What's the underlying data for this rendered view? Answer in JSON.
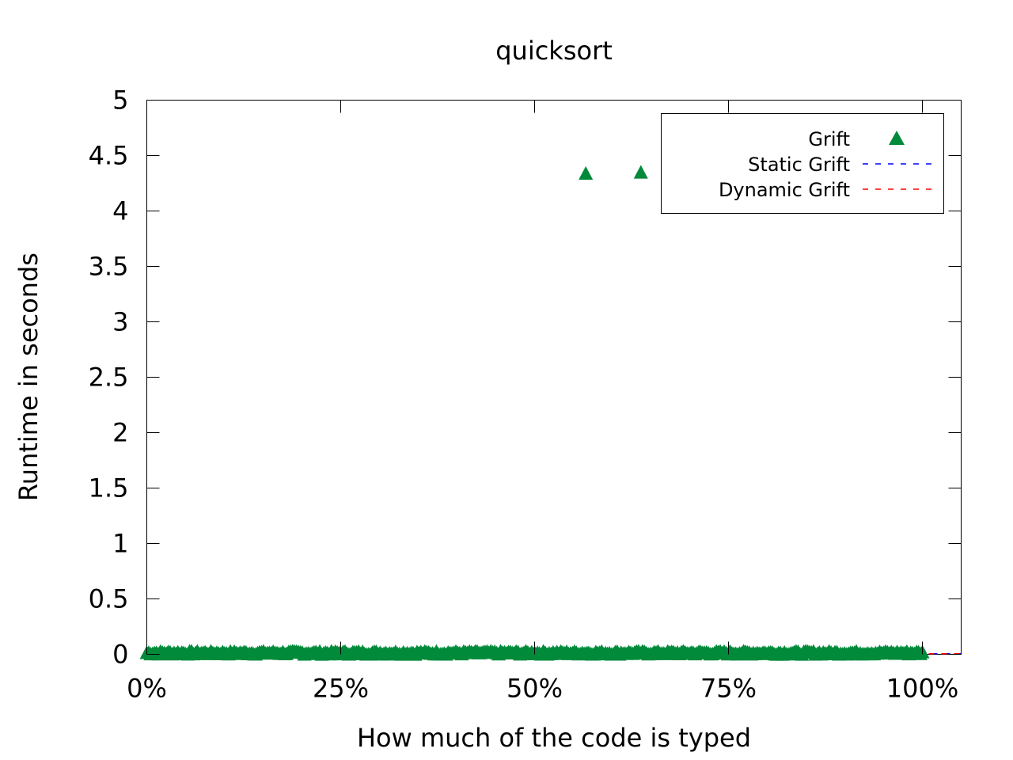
{
  "chart_data": {
    "type": "scatter",
    "title": "quicksort",
    "xlabel": "How much of the code is typed",
    "ylabel": "Runtime in seconds",
    "xlim": [
      0,
      1.05
    ],
    "ylim": [
      0,
      5
    ],
    "xticks": [
      0,
      0.25,
      0.5,
      0.75,
      1.0
    ],
    "xtick_labels": [
      "0%",
      "25%",
      "50%",
      "75%",
      "100%"
    ],
    "yticks": [
      0,
      0.5,
      1,
      1.5,
      2,
      2.5,
      3,
      3.5,
      4,
      4.5,
      5
    ],
    "ytick_labels": [
      "0",
      "0.5",
      "1",
      "1.5",
      "2",
      "2.5",
      "3",
      "3.5",
      "4",
      "4.5",
      "5"
    ],
    "grid": false,
    "legend_position": "top-right",
    "series": [
      {
        "name": "Grift",
        "kind": "points",
        "marker": "triangle",
        "color": "#008a3a",
        "outliers": [
          {
            "x": 0.566,
            "y": 4.34
          },
          {
            "x": 0.637,
            "y": 4.35
          }
        ],
        "baseline": {
          "x_start": 0.0,
          "x_end": 1.0,
          "y_min": 0.0,
          "y_max": 0.03,
          "count": 400
        }
      },
      {
        "name": "Static Grift",
        "kind": "line",
        "style": "dashed",
        "color": "#0000ff",
        "y": 0.005
      },
      {
        "name": "Dynamic Grift",
        "kind": "line",
        "style": "dashed",
        "color": "#ff0000",
        "y": 0.005
      }
    ]
  }
}
